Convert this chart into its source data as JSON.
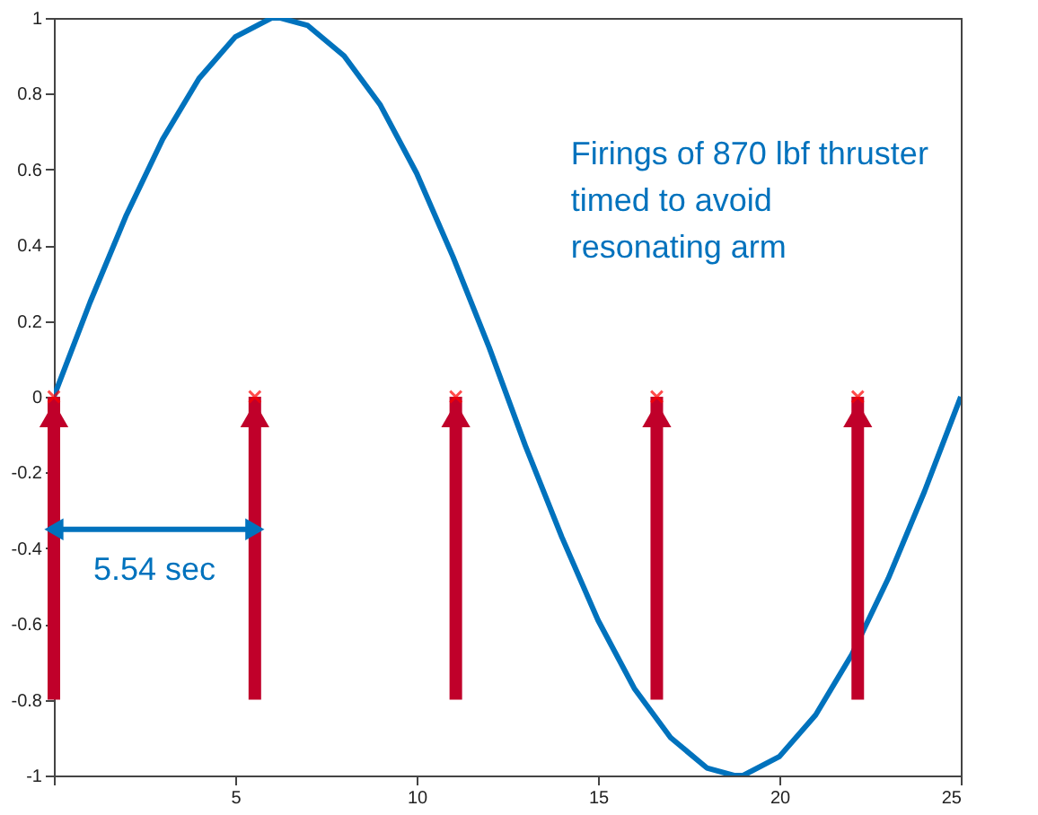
{
  "chart_data": {
    "type": "line",
    "xlim": [
      0,
      25
    ],
    "ylim": [
      -1,
      1
    ],
    "xticks": [
      {
        "value": 0,
        "label": null
      },
      5,
      10,
      15,
      20,
      25
    ],
    "yticks": [
      -1,
      -0.8,
      -0.6,
      -0.4,
      -0.2,
      0,
      0.2,
      0.4,
      0.6,
      0.8,
      1
    ],
    "grid": false,
    "series": [
      {
        "color": "#0072bd",
        "marker": "none",
        "line_style": "solid",
        "x": [
          0,
          1,
          2,
          3,
          4,
          5,
          6,
          6.25,
          7,
          8,
          9,
          10,
          11,
          12,
          13,
          14,
          15,
          16,
          17,
          18,
          18.75,
          19,
          20,
          21,
          22,
          23,
          24,
          25
        ],
        "values": [
          0,
          0.25,
          0.48,
          0.68,
          0.84,
          0.95,
          1.0,
          1.0,
          0.98,
          0.9,
          0.77,
          0.59,
          0.37,
          0.13,
          -0.13,
          -0.37,
          -0.59,
          -0.77,
          -0.9,
          -0.98,
          -1.0,
          -1.0,
          -0.95,
          -0.84,
          -0.68,
          -0.48,
          -0.25,
          0
        ]
      },
      {
        "type": "bar",
        "color": "#c0002a",
        "x": [
          0,
          5.54,
          11.08,
          16.62,
          22.16
        ],
        "base": [
          -0.8,
          -0.8,
          -0.8,
          -0.8,
          -0.8
        ],
        "values": [
          0.8,
          0.8,
          0.8,
          0.8,
          0.8
        ]
      },
      {
        "type": "scatter",
        "color": "#ff0000",
        "marker": "cross",
        "x": [
          0,
          5.54,
          11.08,
          16.62,
          22.16
        ],
        "values": [
          0,
          0,
          0,
          0,
          0
        ]
      }
    ],
    "annotations": [
      "Firings of 870 lbf thruster\ntimed to avoid\nresonating arm",
      "5.54 sec"
    ]
  }
}
